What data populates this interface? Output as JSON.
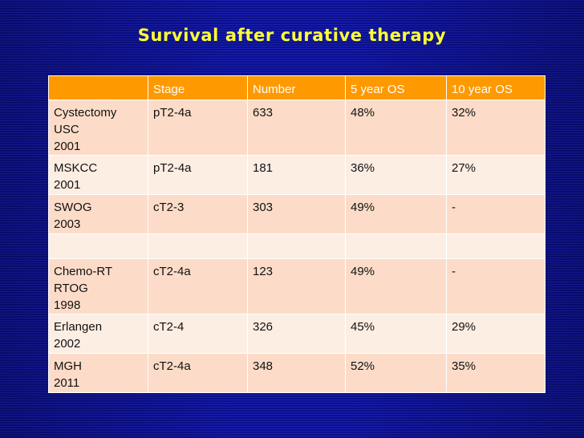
{
  "title": "Survival after curative therapy",
  "table": {
    "headers": [
      "",
      "Stage",
      "Number",
      "5 year OS",
      "10 year OS"
    ],
    "rows": [
      [
        "Cystectomy\nUSC\n2001",
        "pT2-4a",
        "633",
        "48%",
        "32%"
      ],
      [
        "MSKCC\n2001",
        "pT2-4a",
        "181",
        "36%",
        "27%"
      ],
      [
        "SWOG\n2003",
        "cT2-3",
        "303",
        "49%",
        "-"
      ],
      [
        "",
        "",
        "",
        "",
        ""
      ],
      [
        "Chemo-RT\nRTOG\n1998",
        "cT2-4a",
        "123",
        "49%",
        "-"
      ],
      [
        "Erlangen\n2002",
        "cT2-4",
        "326",
        "45%",
        "29%"
      ],
      [
        "MGH\n2011",
        "cT2-4a",
        "348",
        "52%",
        "35%"
      ]
    ]
  },
  "colors": {
    "background": "#0a0f8a",
    "title": "#ffff33",
    "header_fill": "#ff9900",
    "row_fill": "#fcdcc8",
    "row_fill_alt": "#fdeee4"
  }
}
